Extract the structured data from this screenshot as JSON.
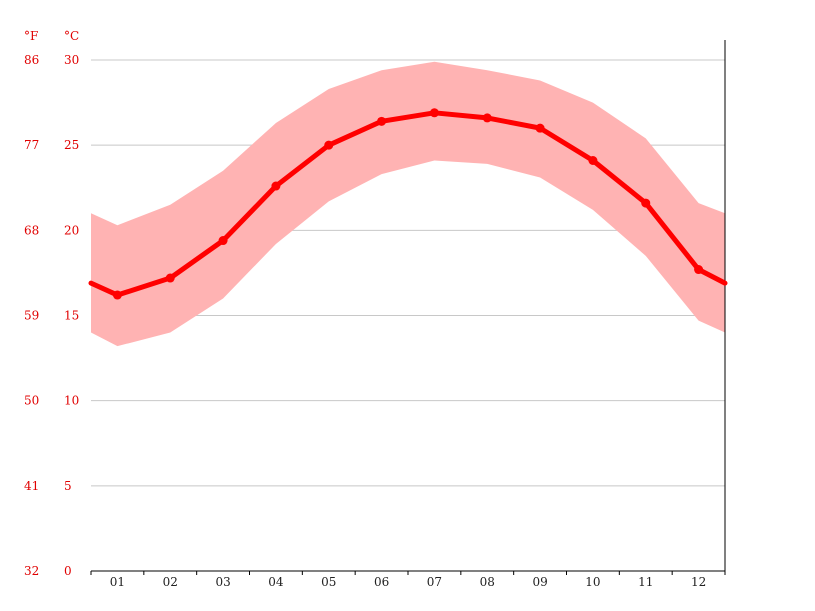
{
  "chart_data": {
    "type": "line",
    "title": "",
    "xlabel": "",
    "ylabel": "",
    "units": {
      "fahrenheit": "°F",
      "celsius": "°C"
    },
    "categories": [
      "01",
      "02",
      "03",
      "04",
      "05",
      "06",
      "07",
      "08",
      "09",
      "10",
      "11",
      "12"
    ],
    "ylim": [
      0,
      30
    ],
    "y_ticks_c": [
      "0",
      "5",
      "10",
      "15",
      "20",
      "25",
      "30"
    ],
    "y_ticks_f": [
      "32",
      "41",
      "50",
      "59",
      "68",
      "77",
      "86"
    ],
    "grid": true,
    "series": [
      {
        "values": [
          16.2,
          17.2,
          19.4,
          22.6,
          25.0,
          26.4,
          26.9,
          26.6,
          26.0,
          24.1,
          21.6,
          17.7
        ]
      }
    ],
    "band": {
      "low": [
        13.2,
        14.0,
        16.0,
        19.2,
        21.7,
        23.3,
        24.1,
        23.9,
        23.1,
        21.2,
        18.5,
        14.7
      ],
      "high": [
        20.3,
        21.5,
        23.5,
        26.3,
        28.3,
        29.4,
        29.9,
        29.4,
        28.8,
        27.5,
        25.4,
        21.6
      ]
    },
    "edge_values": {
      "line_start": 16.9,
      "line_end": 16.9,
      "low_start": 14.0,
      "low_end": 14.0,
      "high_start": 21.0,
      "high_end": 21.0
    },
    "colors": {
      "line": "#ff0000",
      "band": "#ffb3b3",
      "grid": "#c8c8c8",
      "axis_text": "#e00000",
      "month_text": "#222222"
    }
  }
}
